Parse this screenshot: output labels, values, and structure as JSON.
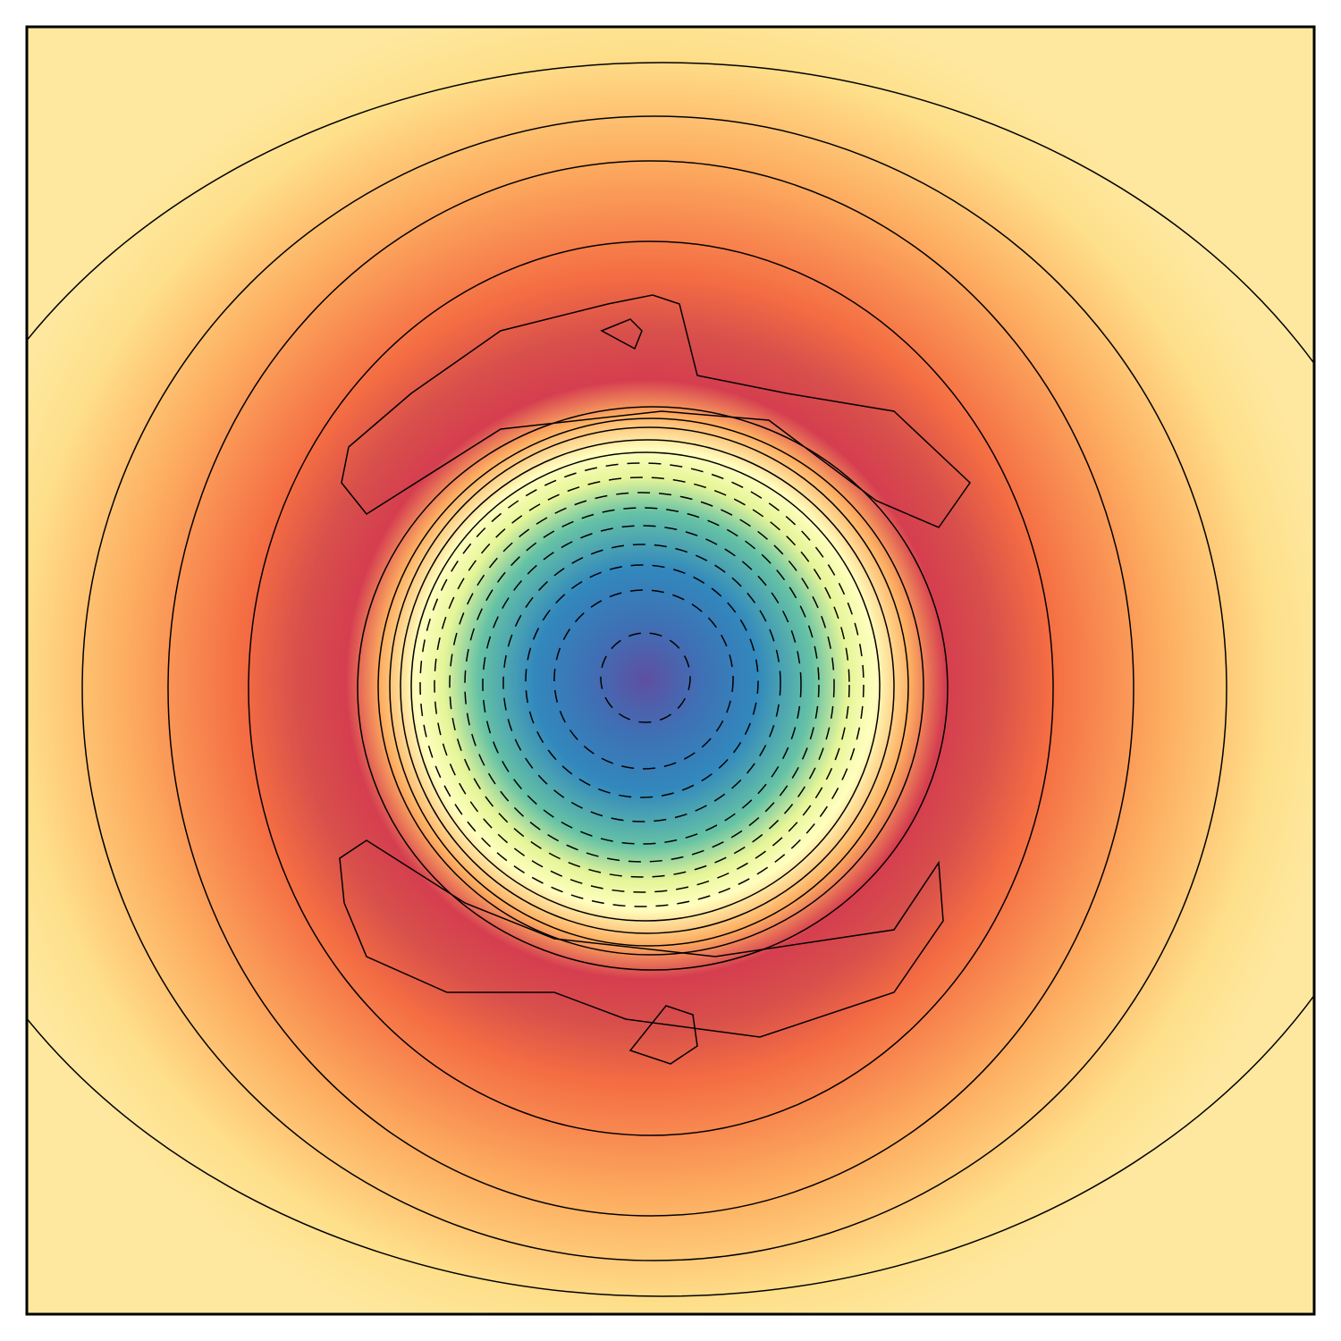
{
  "chart_data": {
    "type": "contour",
    "colors": [
      "#5e4fa2",
      "#3f70b5",
      "#3288bd",
      "#66c2a5",
      "#e6f598",
      "#ffffbf",
      "#fdae61",
      "#d53e4f",
      "#d8504b",
      "#f46d43",
      "#fdae61",
      "#fee08b",
      "#fee8a0"
    ],
    "line_color": "#000000"
  }
}
